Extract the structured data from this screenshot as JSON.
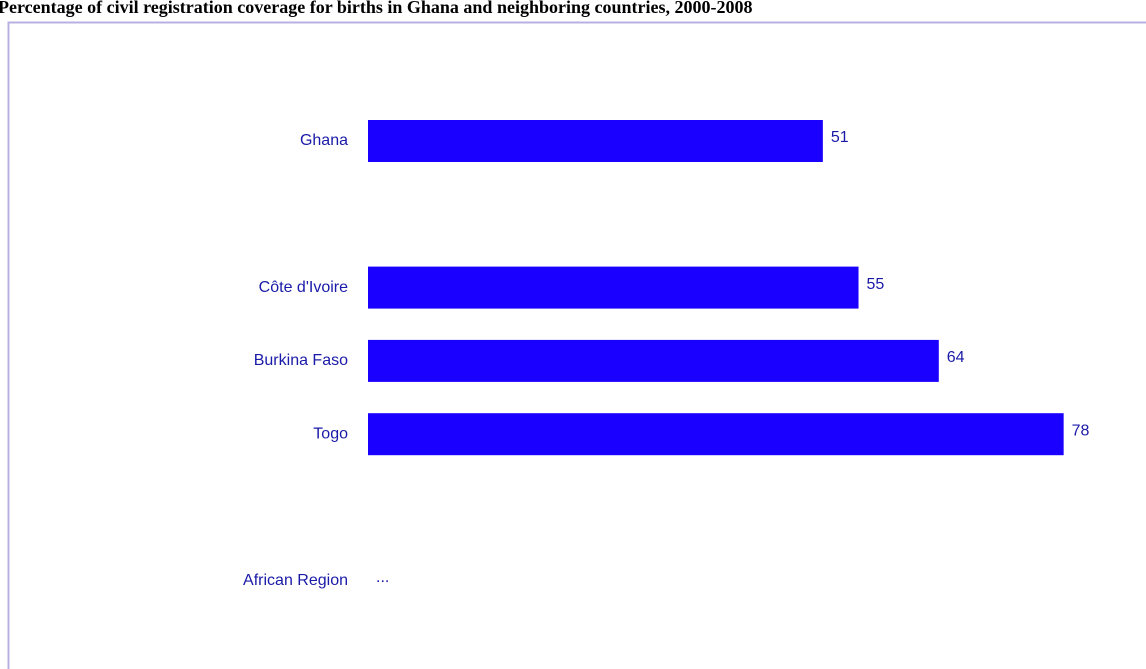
{
  "chart_data": {
    "type": "barh",
    "title": "Percentage of civil registration coverage for births in Ghana and neighboring countries, 2000-2008",
    "categories": [
      "Ghana",
      null,
      "Côte d'Ivoire",
      "Burkina Faso",
      "Togo",
      null,
      "African Region"
    ],
    "values": [
      51,
      null,
      55,
      64,
      78,
      null,
      null
    ],
    "value_labels": [
      "51",
      null,
      "55",
      "64",
      "78",
      null,
      "..."
    ],
    "color": "#1a00ff",
    "xlim": [
      0,
      86
    ]
  }
}
